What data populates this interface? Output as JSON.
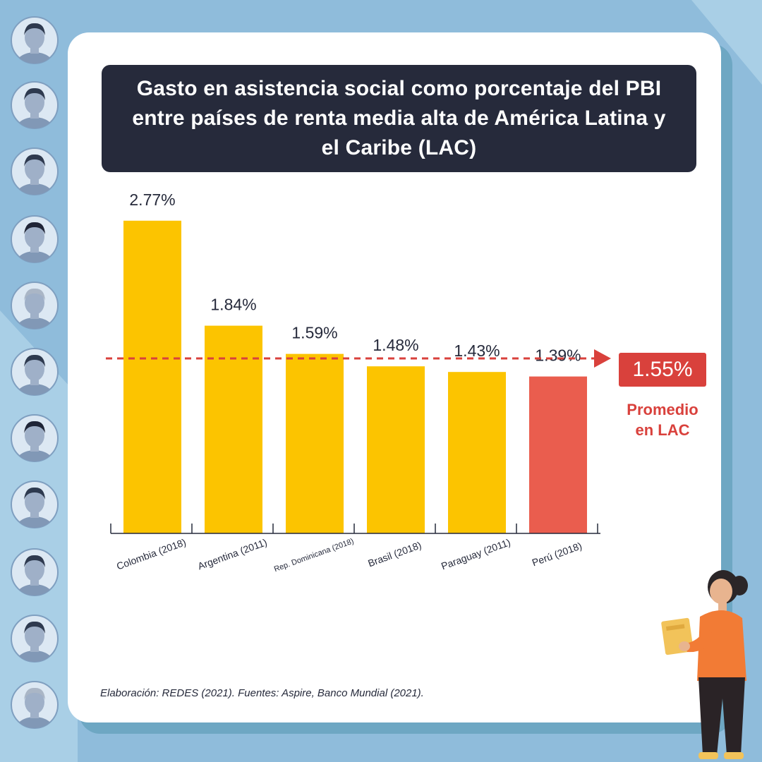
{
  "title": "Gasto en asistencia social como porcentaje del PBI entre países de renta media alta de América Latina y el Caribe (LAC)",
  "colors": {
    "background": "#8fbcdb",
    "card": "#ffffff",
    "title_box": "#262a3b",
    "bar": "#fcc400",
    "bar_highlight": "#ea5d4e",
    "average": "#d9413c"
  },
  "chart_data": {
    "type": "bar",
    "title": "Gasto en asistencia social como porcentaje del PBI entre países de renta media alta de América Latina y el Caribe (LAC)",
    "categories": [
      "Colombia (2018)",
      "Argentina (2011)",
      "Rep. Dominicana (2018)",
      "Brasil (2018)",
      "Paraguay (2011)",
      "Perú (2018)"
    ],
    "values": [
      2.77,
      1.84,
      1.59,
      1.48,
      1.43,
      1.39
    ],
    "value_labels": [
      "2.77%",
      "1.84%",
      "1.59%",
      "1.48%",
      "1.43%",
      "1.39%"
    ],
    "highlight": "Perú (2018)",
    "ylim": [
      0,
      3.0
    ],
    "grid": false,
    "legend": false,
    "reference_line": {
      "value": 1.55,
      "label": "1.55%",
      "caption": [
        "Promedio",
        "en LAC"
      ],
      "style": "dashed"
    }
  },
  "source": "Elaboración: REDES (2021). Fuentes: Aspire, Banco Mundial (2021).",
  "icons": [
    "person-avatar-icon",
    "woman-with-folder-illustration"
  ]
}
